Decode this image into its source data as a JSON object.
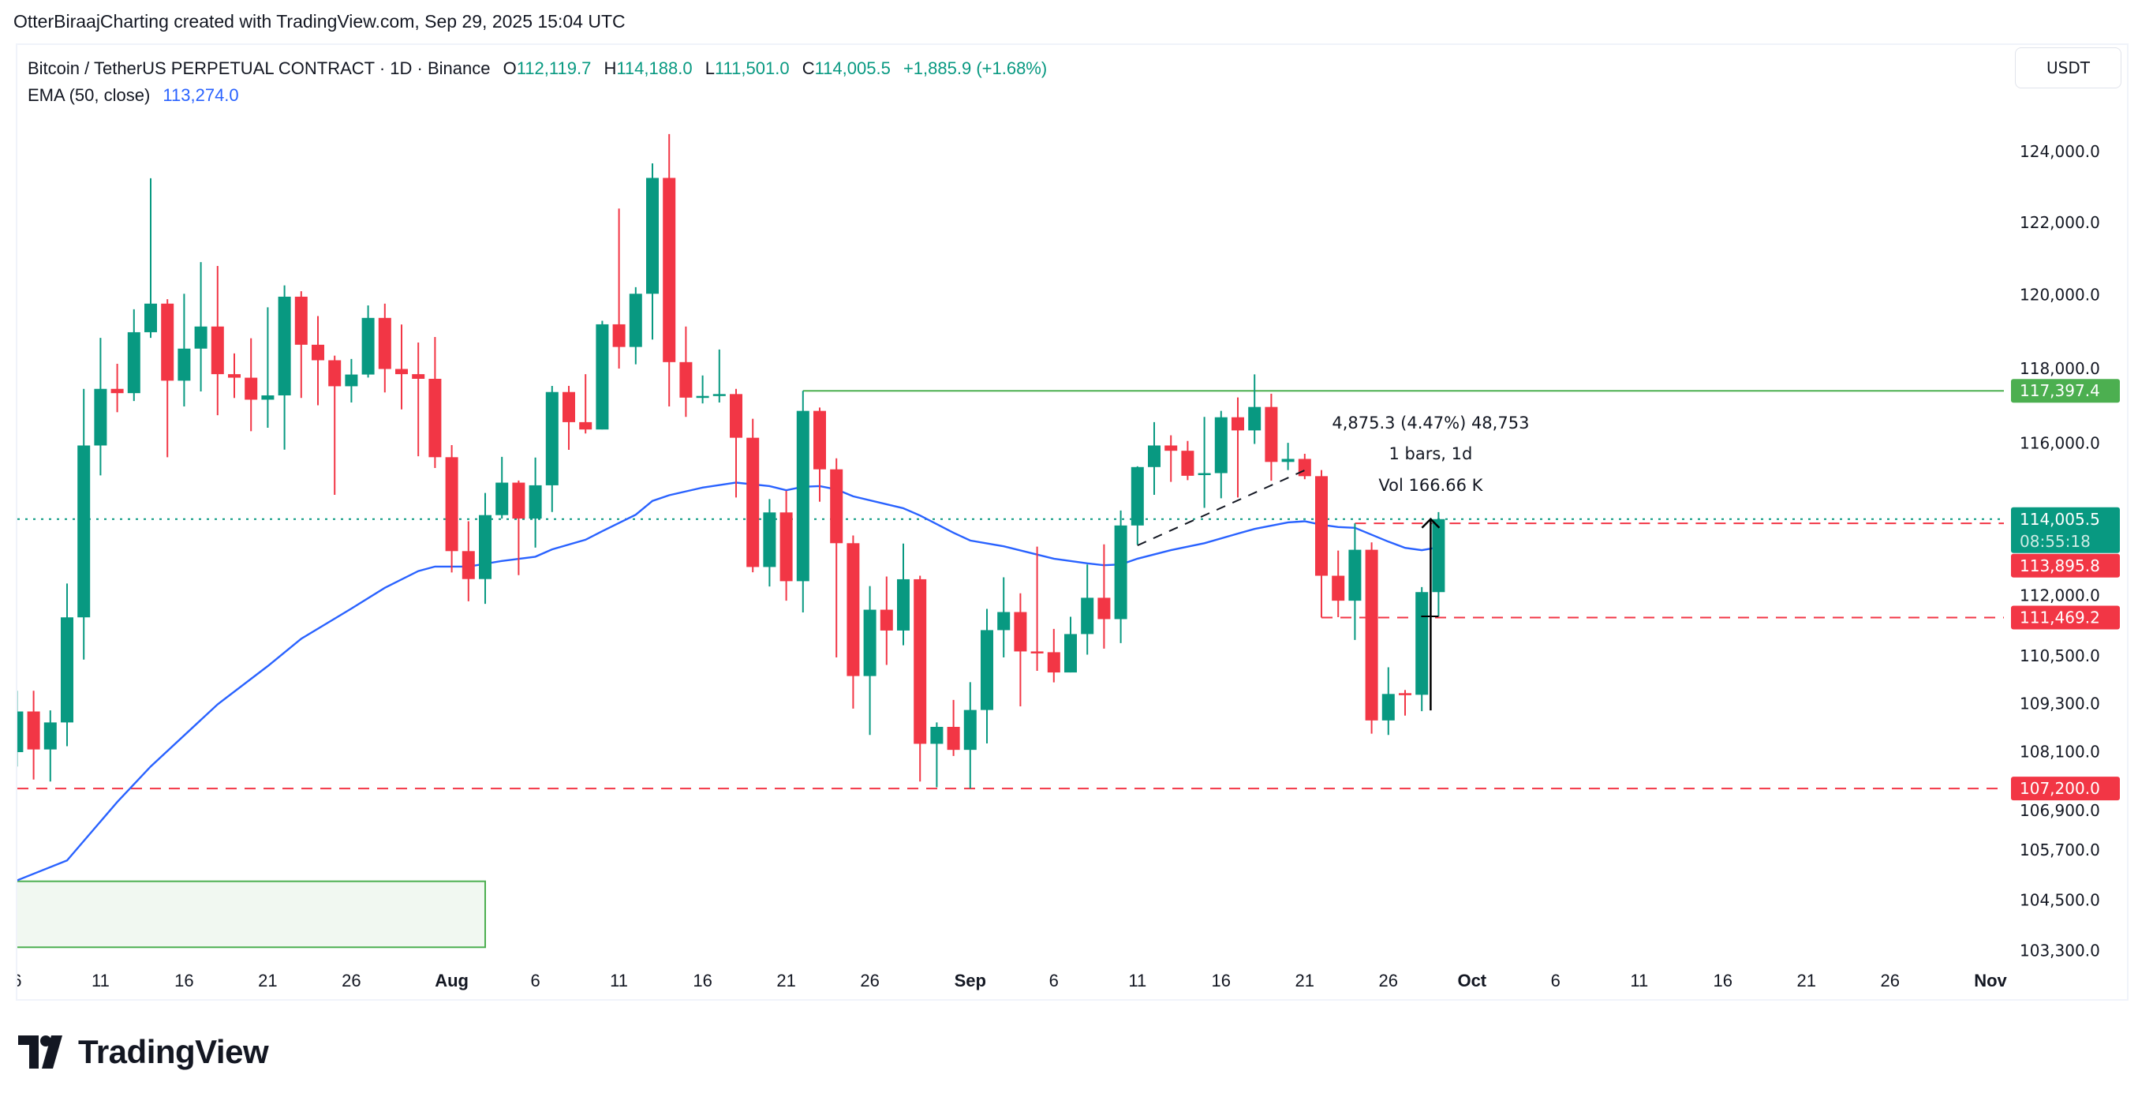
{
  "header": {
    "caption": "OtterBiraajCharting created with TradingView.com, Sep 29, 2025 15:04 UTC"
  },
  "legend": {
    "symbol": "Bitcoin / TetherUS PERPETUAL CONTRACT · 1D · Binance",
    "o_label": "O",
    "o": "112,119.7",
    "h_label": "H",
    "h": "114,188.0",
    "l_label": "L",
    "l": "111,501.0",
    "c_label": "C",
    "c": "114,005.5",
    "change": "+1,885.9 (+1.68%)",
    "ema_label": "EMA (50, close)",
    "ema_value": "113,274.0"
  },
  "currency_button": "USDT",
  "logo": {
    "text": "TradingView"
  },
  "colors": {
    "up": "#089981",
    "down": "#f23645",
    "ema": "#2962ff",
    "level": "#4caf50",
    "text": "#131722"
  },
  "chart_data": {
    "type": "candlestick",
    "interval": "1D",
    "y_scale": "log",
    "ylim": [
      103000,
      124700
    ],
    "grid": false,
    "y_ticks": [
      "124,000.0",
      "122,000.0",
      "120,000.0",
      "118,000.0",
      "116,000.0",
      "112,000.0",
      "110,500.0",
      "109,300.0",
      "108,100.0",
      "106,900.0",
      "105,700.0",
      "104,500.0",
      "103,300.0"
    ],
    "x_ticks": [
      {
        "date": "2025-07-06",
        "label": "6"
      },
      {
        "date": "2025-07-11",
        "label": "11"
      },
      {
        "date": "2025-07-16",
        "label": "16"
      },
      {
        "date": "2025-07-21",
        "label": "21"
      },
      {
        "date": "2025-07-26",
        "label": "26"
      },
      {
        "date": "2025-08-01",
        "label": "Aug",
        "major": true
      },
      {
        "date": "2025-08-06",
        "label": "6"
      },
      {
        "date": "2025-08-11",
        "label": "11"
      },
      {
        "date": "2025-08-16",
        "label": "16"
      },
      {
        "date": "2025-08-21",
        "label": "21"
      },
      {
        "date": "2025-08-26",
        "label": "26"
      },
      {
        "date": "2025-09-01",
        "label": "Sep",
        "major": true
      },
      {
        "date": "2025-09-06",
        "label": "6"
      },
      {
        "date": "2025-09-11",
        "label": "11"
      },
      {
        "date": "2025-09-16",
        "label": "16"
      },
      {
        "date": "2025-09-21",
        "label": "21"
      },
      {
        "date": "2025-09-26",
        "label": "26"
      },
      {
        "date": "2025-10-01",
        "label": "Oct",
        "major": true
      },
      {
        "date": "2025-10-06",
        "label": "6"
      },
      {
        "date": "2025-10-11",
        "label": "11"
      },
      {
        "date": "2025-10-16",
        "label": "16"
      },
      {
        "date": "2025-10-21",
        "label": "21"
      },
      {
        "date": "2025-10-26",
        "label": "26"
      },
      {
        "date": "2025-11-01",
        "label": "Nov",
        "major": true
      }
    ],
    "candles_columns": [
      "date",
      "open",
      "high",
      "low",
      "close"
    ],
    "candles": [
      [
        "2025-07-06",
        108094,
        109620,
        107740,
        109103
      ],
      [
        "2025-07-07",
        109103,
        109620,
        107420,
        108160
      ],
      [
        "2025-07-08",
        108160,
        109130,
        107370,
        108830
      ],
      [
        "2025-07-09",
        108830,
        112340,
        108240,
        111475
      ],
      [
        "2025-07-10",
        111475,
        117450,
        110404,
        115940
      ],
      [
        "2025-07-11",
        115940,
        118825,
        115150,
        117450
      ],
      [
        "2025-07-12",
        117450,
        118125,
        116825,
        117335
      ],
      [
        "2025-07-13",
        117335,
        119605,
        117125,
        118980
      ],
      [
        "2025-07-14",
        118980,
        123240,
        118825,
        119760
      ],
      [
        "2025-07-15",
        119760,
        119880,
        115630,
        117670
      ],
      [
        "2025-07-16",
        117670,
        120030,
        116980,
        118535
      ],
      [
        "2025-07-17",
        118535,
        120900,
        117380,
        119135
      ],
      [
        "2025-07-18",
        119135,
        120795,
        116745,
        117845
      ],
      [
        "2025-07-19",
        117845,
        118405,
        117205,
        117750
      ],
      [
        "2025-07-20",
        117750,
        118815,
        116320,
        117160
      ],
      [
        "2025-07-21",
        117160,
        119660,
        116410,
        117275
      ],
      [
        "2025-07-22",
        117275,
        120260,
        115830,
        119950
      ],
      [
        "2025-07-23",
        119950,
        120100,
        117205,
        118640
      ],
      [
        "2025-07-24",
        118640,
        119420,
        117010,
        118220
      ],
      [
        "2025-07-25",
        118220,
        118345,
        114640,
        117520
      ],
      [
        "2025-07-26",
        117520,
        118255,
        117085,
        117835
      ],
      [
        "2025-07-27",
        117835,
        119710,
        117755,
        119370
      ],
      [
        "2025-07-28",
        119370,
        119760,
        117355,
        117985
      ],
      [
        "2025-07-29",
        117985,
        119190,
        116900,
        117845
      ],
      [
        "2025-07-30",
        117845,
        118700,
        115655,
        117720
      ],
      [
        "2025-07-31",
        117720,
        118850,
        115345,
        115630
      ],
      [
        "2025-08-01",
        115630,
        115950,
        112625,
        113175
      ],
      [
        "2025-08-02",
        113175,
        113950,
        111885,
        112455
      ],
      [
        "2025-08-03",
        112455,
        114690,
        111820,
        114110
      ],
      [
        "2025-08-04",
        114110,
        115640,
        114020,
        114960
      ],
      [
        "2025-08-05",
        114960,
        115015,
        112555,
        114020
      ],
      [
        "2025-08-06",
        114020,
        115620,
        113265,
        114890
      ],
      [
        "2025-08-07",
        114890,
        117530,
        114190,
        117365
      ],
      [
        "2025-08-08",
        117365,
        117530,
        115825,
        116560
      ],
      [
        "2025-08-09",
        116560,
        117845,
        116260,
        116365
      ],
      [
        "2025-08-10",
        116365,
        119290,
        116365,
        119195
      ],
      [
        "2025-08-11",
        119195,
        122390,
        117995,
        118580
      ],
      [
        "2025-08-12",
        118580,
        120210,
        118110,
        120030
      ],
      [
        "2025-08-13",
        120030,
        123660,
        118780,
        123250
      ],
      [
        "2025-08-14",
        123250,
        124490,
        116980,
        118170
      ],
      [
        "2025-08-15",
        118170,
        119135,
        116700,
        117215
      ],
      [
        "2025-08-16",
        117230,
        117810,
        117060,
        117260
      ],
      [
        "2025-08-17",
        117260,
        118510,
        117085,
        117310
      ],
      [
        "2025-08-18",
        117310,
        117450,
        114570,
        116145
      ],
      [
        "2025-08-19",
        116145,
        116650,
        112630,
        112765
      ],
      [
        "2025-08-20",
        112765,
        114530,
        112265,
        114180
      ],
      [
        "2025-08-21",
        114180,
        114745,
        111900,
        112400
      ],
      [
        "2025-08-22",
        112400,
        117397.4,
        111600,
        116860
      ],
      [
        "2025-08-23",
        116860,
        116950,
        114460,
        115310
      ],
      [
        "2025-08-24",
        115310,
        115600,
        110460,
        113380
      ],
      [
        "2025-08-25",
        113380,
        113580,
        109175,
        109990
      ],
      [
        "2025-08-26",
        109990,
        112275,
        108520,
        111670
      ],
      [
        "2025-08-27",
        111670,
        112520,
        110270,
        111140
      ],
      [
        "2025-08-28",
        111140,
        113370,
        110765,
        112450
      ],
      [
        "2025-08-29",
        112450,
        112540,
        107370,
        108300
      ],
      [
        "2025-08-30",
        108300,
        108830,
        107230,
        108720
      ],
      [
        "2025-08-31",
        108720,
        109390,
        108000,
        108150
      ],
      [
        "2025-09-01",
        108150,
        109835,
        107200,
        109140
      ],
      [
        "2025-09-02",
        109140,
        111690,
        108310,
        111150
      ],
      [
        "2025-09-03",
        111150,
        112500,
        110460,
        111610
      ],
      [
        "2025-09-04",
        111610,
        112090,
        109230,
        110610
      ],
      [
        "2025-09-05",
        110610,
        113290,
        110120,
        110590
      ],
      [
        "2025-09-06",
        110590,
        111180,
        109830,
        110080
      ],
      [
        "2025-09-07",
        110080,
        111490,
        110080,
        111050
      ],
      [
        "2025-09-08",
        111050,
        112830,
        110530,
        111975
      ],
      [
        "2025-09-09",
        111975,
        113350,
        110680,
        111430
      ],
      [
        "2025-09-10",
        111430,
        114230,
        110820,
        113840
      ],
      [
        "2025-09-11",
        113840,
        115390,
        113340,
        115370
      ],
      [
        "2025-09-12",
        115370,
        116560,
        114640,
        115940
      ],
      [
        "2025-09-13",
        115940,
        116210,
        114980,
        115800
      ],
      [
        "2025-09-14",
        115800,
        116060,
        115025,
        115140
      ],
      [
        "2025-09-15",
        115180,
        116700,
        114300,
        115210
      ],
      [
        "2025-09-16",
        115210,
        116860,
        114550,
        116690
      ],
      [
        "2025-09-17",
        116690,
        117220,
        114570,
        116340
      ],
      [
        "2025-09-18",
        116340,
        117840,
        115980,
        116965
      ],
      [
        "2025-09-19",
        116965,
        117320,
        115010,
        115505
      ],
      [
        "2025-09-20",
        115505,
        116010,
        115290,
        115585
      ],
      [
        "2025-09-21",
        115585,
        115720,
        115050,
        115130
      ],
      [
        "2025-09-22",
        115130,
        115290,
        111469.2,
        112540
      ],
      [
        "2025-09-23",
        112540,
        113190,
        111480,
        111900
      ],
      [
        "2025-09-24",
        111900,
        113895.8,
        110900,
        113210
      ],
      [
        "2025-09-25",
        113210,
        113400,
        108550,
        108880
      ],
      [
        "2025-09-26",
        108880,
        110210,
        108520,
        109540
      ],
      [
        "2025-09-27",
        109560,
        109640,
        109000,
        109520
      ],
      [
        "2025-09-28",
        109520,
        112250,
        109110,
        112120
      ],
      [
        "2025-09-29",
        112119.7,
        114188.0,
        111501.0,
        114005.5
      ]
    ],
    "ema": {
      "name": "EMA (50, close)",
      "points": [
        [
          "2025-07-06",
          104970
        ],
        [
          "2025-07-09",
          105450
        ],
        [
          "2025-07-12",
          106870
        ],
        [
          "2025-07-14",
          107740
        ],
        [
          "2025-07-18",
          109280
        ],
        [
          "2025-07-21",
          110240
        ],
        [
          "2025-07-23",
          110930
        ],
        [
          "2025-07-26",
          111700
        ],
        [
          "2025-07-28",
          112230
        ],
        [
          "2025-07-30",
          112660
        ],
        [
          "2025-07-31",
          112775
        ],
        [
          "2025-08-02",
          112775
        ],
        [
          "2025-08-04",
          112920
        ],
        [
          "2025-08-06",
          113030
        ],
        [
          "2025-08-07",
          113220
        ],
        [
          "2025-08-09",
          113470
        ],
        [
          "2025-08-10",
          113690
        ],
        [
          "2025-08-12",
          114120
        ],
        [
          "2025-08-13",
          114480
        ],
        [
          "2025-08-14",
          114630
        ],
        [
          "2025-08-16",
          114830
        ],
        [
          "2025-08-18",
          114960
        ],
        [
          "2025-08-20",
          114870
        ],
        [
          "2025-08-21",
          114760
        ],
        [
          "2025-08-22",
          114850
        ],
        [
          "2025-08-23",
          114870
        ],
        [
          "2025-08-24",
          114780
        ],
        [
          "2025-08-25",
          114600
        ],
        [
          "2025-08-28",
          114290
        ],
        [
          "2025-08-29",
          114100
        ],
        [
          "2025-08-31",
          113650
        ],
        [
          "2025-09-01",
          113450
        ],
        [
          "2025-09-03",
          113300
        ],
        [
          "2025-09-06",
          112980
        ],
        [
          "2025-09-08",
          112860
        ],
        [
          "2025-09-09",
          112810
        ],
        [
          "2025-09-10",
          112830
        ],
        [
          "2025-09-11",
          112980
        ],
        [
          "2025-09-13",
          113200
        ],
        [
          "2025-09-15",
          113380
        ],
        [
          "2025-09-17",
          113630
        ],
        [
          "2025-09-18",
          113750
        ],
        [
          "2025-09-20",
          113920
        ],
        [
          "2025-09-21",
          113950
        ],
        [
          "2025-09-22",
          113860
        ],
        [
          "2025-09-23",
          113800
        ],
        [
          "2025-09-24",
          113780
        ],
        [
          "2025-09-26",
          113420
        ],
        [
          "2025-09-27",
          113260
        ],
        [
          "2025-09-28",
          113200
        ],
        [
          "2025-09-29",
          113274
        ]
      ]
    },
    "levels": [
      {
        "name": "resistance-line",
        "price": 117397.4,
        "from": "2025-08-22",
        "style": "solid",
        "color": "#4caf50",
        "label": "117,397.4"
      },
      {
        "name": "last-price-line",
        "price": 114005.5,
        "from": null,
        "style": "dotted",
        "color": "#089981",
        "label": "114,005.5",
        "countdown": "08:55:18"
      },
      {
        "name": "level-113895",
        "price": 113895.8,
        "from": "2025-09-24",
        "style": "dashed",
        "color": "#f23645",
        "label": "113,895.8"
      },
      {
        "name": "level-111469",
        "price": 111469.2,
        "from": "2025-09-22",
        "style": "dashed",
        "color": "#f23645",
        "label": "111,469.2"
      },
      {
        "name": "support-line",
        "price": 107200.0,
        "from": null,
        "style": "dashed",
        "color": "#f23645",
        "label": "107,200.0"
      }
    ],
    "trendline": {
      "from": [
        "2025-09-11",
        113322
      ],
      "to": [
        "2025-09-21",
        115285
      ],
      "style": "dashed",
      "color": "#131722"
    },
    "zone": {
      "from": [
        "2025-07-05",
        104950
      ],
      "to": [
        "2025-08-03",
        103380
      ],
      "fill": "#f1f8f1",
      "border": "#4caf50"
    },
    "measure": {
      "date": "2025-09-29",
      "from_price": 109130,
      "to_price": 114005.5,
      "tick_price": 111501.0,
      "lines": [
        "4,875.3 (4.47%) 48,753",
        "1 bars, 1d",
        "Vol 166.66 K"
      ]
    }
  }
}
